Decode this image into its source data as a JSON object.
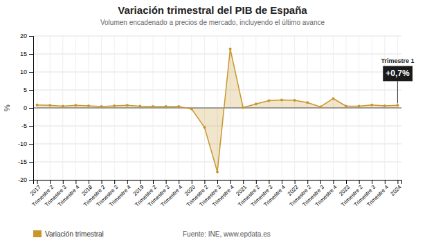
{
  "chart_data": {
    "type": "area",
    "title": "Variación trimestral del PIB de España",
    "subtitle": "Volumen encadenado a precios de mercado, incluyendo el último avance",
    "y_label": "%",
    "categories": [
      "2017",
      "Trimestre 2",
      "Trimestre 3",
      "Trimestre 4",
      "2018",
      "Trimestre 2",
      "Trimestre 3",
      "Trimestre 4",
      "2019",
      "Trimestre 2",
      "Trimestre 3",
      "Trimestre 4",
      "2020",
      "Trimestre 2",
      "Trimestre 3",
      "Trimestre 4",
      "2021",
      "Trimestre 2",
      "Trimestre 3",
      "Trimestre 4",
      "2022",
      "Trimestre 2",
      "Trimestre 3",
      "Trimestre 4",
      "2023",
      "Trimestre 2",
      "Trimestre 3",
      "Trimestre 4",
      "2024"
    ],
    "series": [
      {
        "name": "Variación trimestral",
        "color": "#C8962E",
        "values": [
          0.8,
          0.7,
          0.5,
          0.7,
          0.6,
          0.4,
          0.6,
          0.7,
          0.5,
          0.4,
          0.4,
          0.4,
          -0.3,
          -5.4,
          -17.8,
          16.4,
          0.1,
          1.1,
          2.0,
          2.2,
          2.1,
          1.5,
          0.3,
          2.6,
          0.5,
          0.5,
          0.8,
          0.6,
          0.7
        ]
      }
    ],
    "ylim": [
      -20,
      20
    ],
    "yticks": [
      -20,
      -15,
      -10,
      -5,
      0,
      5,
      10,
      15,
      20
    ],
    "grid": true,
    "legend": "lower left",
    "annotations": [
      {
        "title": "Trimestre 1",
        "text": "+0,7%",
        "color": "#1a1a1a"
      }
    ],
    "source": "Fuente: INE, www.epdata.es"
  }
}
